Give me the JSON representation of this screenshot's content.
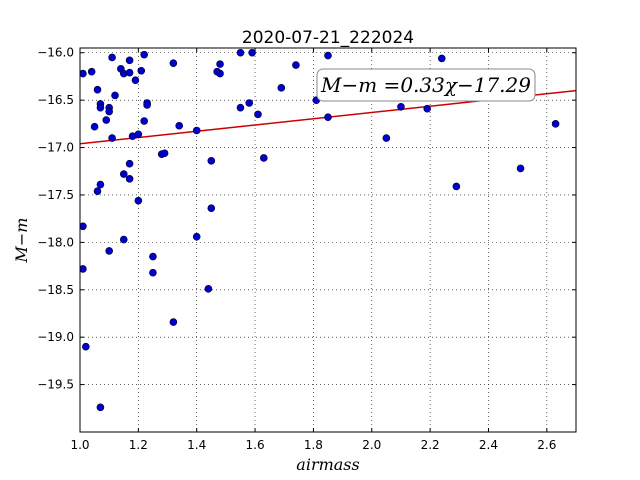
{
  "chart_data": {
    "type": "scatter",
    "title": "2020-07-21_222024",
    "xlabel": "airmass",
    "ylabel": "M−m",
    "xlim": [
      1.0,
      2.7
    ],
    "ylim": [
      -20.0,
      -15.95
    ],
    "y_inverted": true,
    "grid": true,
    "grid_style": "dotted",
    "x_ticks": [
      1.0,
      1.2,
      1.4,
      1.6,
      1.8,
      2.0,
      2.2,
      2.4,
      2.6
    ],
    "x_tick_labels": [
      "1.0",
      "1.2",
      "1.4",
      "1.6",
      "1.8",
      "2.0",
      "2.2",
      "2.4",
      "2.6"
    ],
    "y_ticks": [
      -16.0,
      -16.5,
      -17.0,
      -17.5,
      -18.0,
      -18.5,
      -19.0,
      -19.5
    ],
    "y_tick_labels": [
      "−16.0",
      "−16.5",
      "−17.0",
      "−17.5",
      "−18.0",
      "−18.5",
      "−19.0",
      "−19.5"
    ],
    "point_color": "#0000cc",
    "fit_color": "#cc0000",
    "fit": {
      "slope": 0.33,
      "intercept": -17.29
    },
    "annotation": "M−m =0.33χ−17.29",
    "points": [
      {
        "x": 1.01,
        "y": -16.22
      },
      {
        "x": 1.04,
        "y": -16.2
      },
      {
        "x": 1.06,
        "y": -16.39
      },
      {
        "x": 1.07,
        "y": -16.54
      },
      {
        "x": 1.07,
        "y": -16.58
      },
      {
        "x": 1.09,
        "y": -16.71
      },
      {
        "x": 1.05,
        "y": -16.78
      },
      {
        "x": 1.1,
        "y": -16.58
      },
      {
        "x": 1.1,
        "y": -16.62
      },
      {
        "x": 1.11,
        "y": -16.05
      },
      {
        "x": 1.12,
        "y": -16.45
      },
      {
        "x": 1.11,
        "y": -16.9
      },
      {
        "x": 1.14,
        "y": -16.17
      },
      {
        "x": 1.15,
        "y": -16.22
      },
      {
        "x": 1.17,
        "y": -16.08
      },
      {
        "x": 1.17,
        "y": -16.21
      },
      {
        "x": 1.19,
        "y": -16.29
      },
      {
        "x": 1.21,
        "y": -16.19
      },
      {
        "x": 1.22,
        "y": -16.02
      },
      {
        "x": 1.23,
        "y": -16.53
      },
      {
        "x": 1.23,
        "y": -16.55
      },
      {
        "x": 1.22,
        "y": -16.72
      },
      {
        "x": 1.18,
        "y": -16.88
      },
      {
        "x": 1.2,
        "y": -16.86
      },
      {
        "x": 1.01,
        "y": -17.83
      },
      {
        "x": 1.01,
        "y": -18.28
      },
      {
        "x": 1.02,
        "y": -19.1
      },
      {
        "x": 1.06,
        "y": -17.46
      },
      {
        "x": 1.07,
        "y": -17.39
      },
      {
        "x": 1.07,
        "y": -19.74
      },
      {
        "x": 1.1,
        "y": -18.09
      },
      {
        "x": 1.15,
        "y": -17.28
      },
      {
        "x": 1.17,
        "y": -17.17
      },
      {
        "x": 1.17,
        "y": -17.33
      },
      {
        "x": 1.15,
        "y": -17.97
      },
      {
        "x": 1.2,
        "y": -17.56
      },
      {
        "x": 1.25,
        "y": -18.15
      },
      {
        "x": 1.25,
        "y": -18.32
      },
      {
        "x": 1.28,
        "y": -17.07
      },
      {
        "x": 1.29,
        "y": -17.06
      },
      {
        "x": 1.32,
        "y": -16.11
      },
      {
        "x": 1.34,
        "y": -16.77
      },
      {
        "x": 1.32,
        "y": -18.84
      },
      {
        "x": 1.4,
        "y": -16.82
      },
      {
        "x": 1.4,
        "y": -17.94
      },
      {
        "x": 1.44,
        "y": -18.49
      },
      {
        "x": 1.45,
        "y": -17.14
      },
      {
        "x": 1.45,
        "y": -17.64
      },
      {
        "x": 1.47,
        "y": -16.2
      },
      {
        "x": 1.48,
        "y": -16.22
      },
      {
        "x": 1.48,
        "y": -16.12
      },
      {
        "x": 1.55,
        "y": -16.0
      },
      {
        "x": 1.55,
        "y": -16.58
      },
      {
        "x": 1.58,
        "y": -16.53
      },
      {
        "x": 1.59,
        "y": -16.0
      },
      {
        "x": 1.61,
        "y": -16.65
      },
      {
        "x": 1.63,
        "y": -17.11
      },
      {
        "x": 1.69,
        "y": -16.37
      },
      {
        "x": 1.74,
        "y": -16.13
      },
      {
        "x": 1.81,
        "y": -16.5
      },
      {
        "x": 1.85,
        "y": -16.03
      },
      {
        "x": 1.85,
        "y": -16.68
      },
      {
        "x": 2.05,
        "y": -16.9
      },
      {
        "x": 2.1,
        "y": -16.57
      },
      {
        "x": 2.19,
        "y": -16.59
      },
      {
        "x": 2.24,
        "y": -16.06
      },
      {
        "x": 2.29,
        "y": -17.41
      },
      {
        "x": 2.51,
        "y": -17.22
      },
      {
        "x": 2.63,
        "y": -16.75
      }
    ]
  }
}
